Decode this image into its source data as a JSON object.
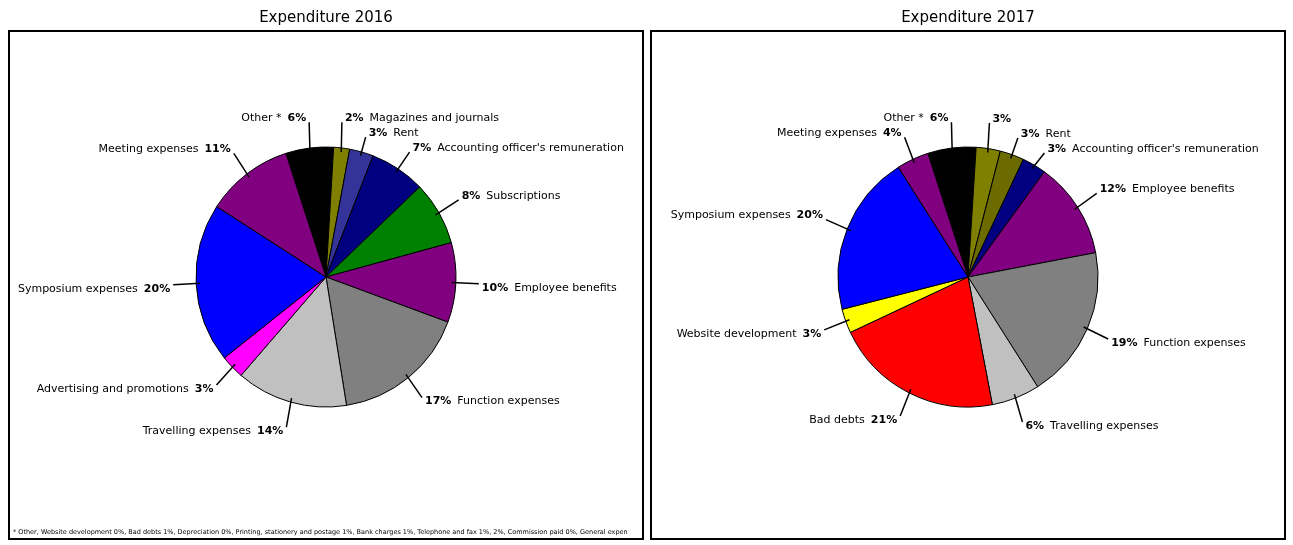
{
  "chart_data": [
    {
      "type": "pie",
      "title": "Expenditure 2016",
      "categories": [
        "Other *",
        "Magazines and journals",
        "Rent",
        "Accounting officer's remuneration",
        "Subscriptions",
        "Employee benefits",
        "Function expenses",
        "Travelling expenses",
        "Advertising and promotions",
        "Symposium expenses",
        "Meeting expenses"
      ],
      "values": [
        6,
        2,
        3,
        7,
        8,
        10,
        17,
        14,
        3,
        20,
        11
      ],
      "colors": [
        "#000000",
        "#808000",
        "#333399",
        "#000080",
        "#008000",
        "#800080",
        "#808080",
        "#c0c0c0",
        "#ff00ff",
        "#0000ff",
        "#800080"
      ],
      "value_labels": [
        "6%",
        "2%",
        "3%",
        "7%",
        "8%",
        "10%",
        "17%",
        "14%",
        "3%",
        "20%",
        "11%"
      ],
      "legend": false,
      "annotations": [
        "* Other, Website development 0%, Bad debts 1%, Depreciation 0%, Printing, stationery and postage 1%, Bank charges 1%, Telephone and fax 1%,   2%, Commission paid 0%, General expen"
      ]
    },
    {
      "type": "pie",
      "title": "Expenditure 2017",
      "categories": [
        "Other *",
        null,
        "Rent",
        "Accounting officer's remuneration",
        "Employee benefits",
        "Function expenses",
        "Travelling expenses",
        "Bad debts",
        "Website development",
        "Symposium expenses",
        "Meeting expenses"
      ],
      "values": [
        6,
        3,
        3,
        3,
        12,
        19,
        6,
        21,
        3,
        20,
        4
      ],
      "colors": [
        "#000000",
        "#808000",
        "#6b6b00",
        "#000080",
        "#800080",
        "#808080",
        "#c0c0c0",
        "#ff0000",
        "#ffff00",
        "#0000ff",
        "#800080"
      ],
      "value_labels": [
        "6%",
        "3%",
        "3%",
        "3%",
        "12%",
        "19%",
        "6%",
        "21%",
        "3%",
        "20%",
        "4%"
      ],
      "legend": false
    }
  ]
}
